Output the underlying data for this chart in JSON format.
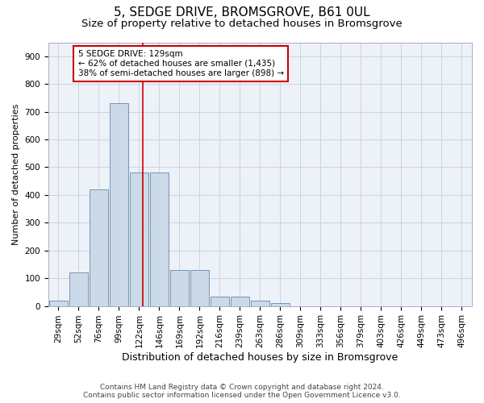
{
  "title1": "5, SEDGE DRIVE, BROMSGROVE, B61 0UL",
  "title2": "Size of property relative to detached houses in Bromsgrove",
  "xlabel": "Distribution of detached houses by size in Bromsgrove",
  "ylabel": "Number of detached properties",
  "categories": [
    "29sqm",
    "52sqm",
    "76sqm",
    "99sqm",
    "122sqm",
    "146sqm",
    "169sqm",
    "192sqm",
    "216sqm",
    "239sqm",
    "263sqm",
    "286sqm",
    "309sqm",
    "333sqm",
    "356sqm",
    "379sqm",
    "403sqm",
    "426sqm",
    "449sqm",
    "473sqm",
    "496sqm"
  ],
  "values": [
    20,
    120,
    420,
    730,
    480,
    480,
    130,
    130,
    35,
    35,
    20,
    10,
    0,
    0,
    0,
    0,
    0,
    0,
    0,
    0,
    0
  ],
  "bar_color": "#ccd9e8",
  "bar_edge_color": "#6688aa",
  "grid_color": "#cdd5e0",
  "background_color": "#edf1f8",
  "vline_color": "#cc0000",
  "annotation_text": "5 SEDGE DRIVE: 129sqm\n← 62% of detached houses are smaller (1,435)\n38% of semi-detached houses are larger (898) →",
  "annotation_box_color": "#ffffff",
  "annotation_box_edge": "#cc0000",
  "ylim": [
    0,
    950
  ],
  "yticks": [
    0,
    100,
    200,
    300,
    400,
    500,
    600,
    700,
    800,
    900
  ],
  "footer1": "Contains HM Land Registry data © Crown copyright and database right 2024.",
  "footer2": "Contains public sector information licensed under the Open Government Licence v3.0.",
  "title1_fontsize": 11,
  "title2_fontsize": 9.5,
  "xlabel_fontsize": 9,
  "ylabel_fontsize": 8,
  "tick_fontsize": 7.5,
  "footer_fontsize": 6.5
}
